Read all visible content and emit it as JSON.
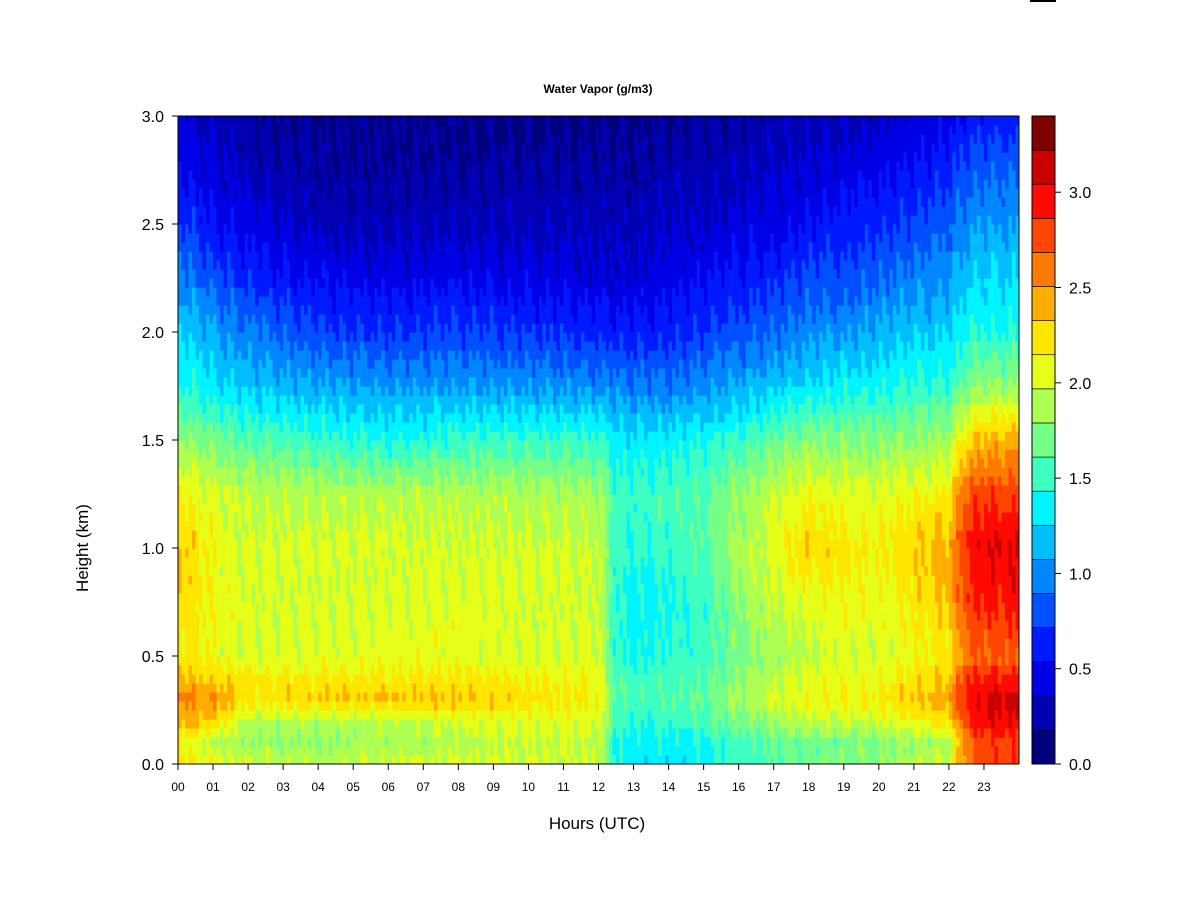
{
  "chart_data": {
    "type": "heatmap",
    "title": "Water Vapor (g/m3)",
    "xlabel": "Hours (UTC)",
    "ylabel": "Height (km)",
    "xlim": [
      0,
      24
    ],
    "ylim": [
      0,
      3.0
    ],
    "x_ticks": [
      "00",
      "01",
      "02",
      "03",
      "04",
      "05",
      "06",
      "07",
      "08",
      "09",
      "10",
      "11",
      "12",
      "13",
      "14",
      "15",
      "16",
      "17",
      "18",
      "19",
      "20",
      "21",
      "22",
      "23"
    ],
    "y_ticks": [
      "0.0",
      "0.5",
      "1.0",
      "1.5",
      "2.0",
      "2.5",
      "3.0"
    ],
    "colorbar": {
      "range": [
        0.0,
        3.4
      ],
      "tick_values": [
        0.0,
        0.5,
        1.0,
        1.5,
        2.0,
        2.5,
        3.0
      ],
      "tick_labels": [
        "0.0",
        "0.5",
        "1.0",
        "1.5",
        "2.0",
        "2.5",
        "3.0"
      ],
      "colors": [
        "#00007f",
        "#0000b2",
        "#0000e5",
        "#001aff",
        "#0050ff",
        "#0087ff",
        "#00bdff",
        "#00f4ff",
        "#3dffc1",
        "#75ff89",
        "#adff51",
        "#e5ff19",
        "#ffe600",
        "#ffae00",
        "#ff7a00",
        "#ff4600",
        "#ff0a00",
        "#c80000",
        "#7f0000"
      ]
    },
    "heights_km": [
      0.0,
      0.1,
      0.2,
      0.3,
      0.4,
      0.5,
      0.75,
      1.0,
      1.25,
      1.5,
      1.75,
      2.0,
      2.25,
      2.5,
      2.75,
      3.0
    ],
    "hours": [
      0,
      1,
      2,
      4,
      6,
      8,
      10,
      12,
      12.5,
      13,
      14,
      15,
      16,
      17,
      18,
      19,
      20,
      21,
      22,
      22.5,
      23,
      24
    ],
    "profiles": [
      [
        2.2,
        2.1,
        2.4,
        2.6,
        2.4,
        2.2,
        2.3,
        2.4,
        2.2,
        1.8,
        1.5,
        1.3,
        1.0,
        0.75,
        0.55,
        0.4
      ],
      [
        2.1,
        1.9,
        2.3,
        2.5,
        2.3,
        2.1,
        2.1,
        2.1,
        2.0,
        1.7,
        1.3,
        1.1,
        0.8,
        0.55,
        0.4,
        0.3
      ],
      [
        2.0,
        1.8,
        1.9,
        2.2,
        2.2,
        2.0,
        2.0,
        2.0,
        1.95,
        1.6,
        1.2,
        0.95,
        0.65,
        0.45,
        0.3,
        0.2
      ],
      [
        1.9,
        1.8,
        1.9,
        2.3,
        2.2,
        2.0,
        2.0,
        2.0,
        1.9,
        1.5,
        1.1,
        0.75,
        0.5,
        0.3,
        0.2,
        0.15
      ],
      [
        2.0,
        1.85,
        1.9,
        2.35,
        2.2,
        2.05,
        2.0,
        2.0,
        1.9,
        1.4,
        1.05,
        0.7,
        0.45,
        0.3,
        0.2,
        0.15
      ],
      [
        2.0,
        1.9,
        2.0,
        2.35,
        2.2,
        2.05,
        2.05,
        2.0,
        1.9,
        1.5,
        1.05,
        0.75,
        0.5,
        0.3,
        0.2,
        0.15
      ],
      [
        2.0,
        1.95,
        2.05,
        2.25,
        2.15,
        2.0,
        2.0,
        2.0,
        1.9,
        1.5,
        1.05,
        0.7,
        0.45,
        0.3,
        0.2,
        0.15
      ],
      [
        2.0,
        1.95,
        2.05,
        2.15,
        2.1,
        2.0,
        2.0,
        1.95,
        1.85,
        1.5,
        1.0,
        0.65,
        0.4,
        0.3,
        0.2,
        0.15
      ],
      [
        1.4,
        1.4,
        1.5,
        1.6,
        1.55,
        1.45,
        1.45,
        1.5,
        1.5,
        1.35,
        1.0,
        0.6,
        0.4,
        0.3,
        0.2,
        0.15
      ],
      [
        1.3,
        1.35,
        1.45,
        1.55,
        1.5,
        1.4,
        1.35,
        1.45,
        1.5,
        1.3,
        0.95,
        0.6,
        0.4,
        0.3,
        0.2,
        0.15
      ],
      [
        1.3,
        1.35,
        1.5,
        1.6,
        1.55,
        1.45,
        1.4,
        1.5,
        1.55,
        1.35,
        0.95,
        0.65,
        0.45,
        0.35,
        0.25,
        0.15
      ],
      [
        1.35,
        1.4,
        1.55,
        1.6,
        1.6,
        1.5,
        1.5,
        1.6,
        1.6,
        1.4,
        1.0,
        0.7,
        0.5,
        0.35,
        0.25,
        0.2
      ],
      [
        1.5,
        1.55,
        1.7,
        1.85,
        1.8,
        1.7,
        1.8,
        1.85,
        1.8,
        1.5,
        1.1,
        0.8,
        0.6,
        0.4,
        0.3,
        0.2
      ],
      [
        1.6,
        1.6,
        1.85,
        2.0,
        1.95,
        1.85,
        1.95,
        2.05,
        1.95,
        1.65,
        1.2,
        0.9,
        0.65,
        0.45,
        0.35,
        0.25
      ],
      [
        1.7,
        1.7,
        1.95,
        2.1,
        2.05,
        1.95,
        2.05,
        2.3,
        2.1,
        1.75,
        1.3,
        1.0,
        0.75,
        0.55,
        0.4,
        0.3
      ],
      [
        1.75,
        1.7,
        1.95,
        2.15,
        2.1,
        2.0,
        2.1,
        2.2,
        2.05,
        1.75,
        1.35,
        1.05,
        0.8,
        0.6,
        0.45,
        0.3
      ],
      [
        1.8,
        1.75,
        2.0,
        2.2,
        2.1,
        2.0,
        2.05,
        2.15,
        2.05,
        1.75,
        1.4,
        1.1,
        0.9,
        0.65,
        0.5,
        0.35
      ],
      [
        1.9,
        1.8,
        2.1,
        2.35,
        2.2,
        2.1,
        2.2,
        2.3,
        2.1,
        1.8,
        1.45,
        1.2,
        0.95,
        0.75,
        0.55,
        0.4
      ],
      [
        2.0,
        1.85,
        2.25,
        2.45,
        2.3,
        2.2,
        2.35,
        2.45,
        2.2,
        1.85,
        1.5,
        1.25,
        1.05,
        0.85,
        0.65,
        0.45
      ],
      [
        2.6,
        2.6,
        2.8,
        3.0,
        2.85,
        2.6,
        2.85,
        2.9,
        2.7,
        2.25,
        1.7,
        1.4,
        1.2,
        1.0,
        0.8,
        0.55
      ],
      [
        2.8,
        2.8,
        3.0,
        3.1,
        2.9,
        2.7,
        2.9,
        3.05,
        2.8,
        2.4,
        1.8,
        1.45,
        1.25,
        1.05,
        0.85,
        0.6
      ],
      [
        2.8,
        2.8,
        3.0,
        3.1,
        2.9,
        2.7,
        2.9,
        3.05,
        2.8,
        2.4,
        1.8,
        1.45,
        1.25,
        1.05,
        0.85,
        0.6
      ]
    ]
  }
}
